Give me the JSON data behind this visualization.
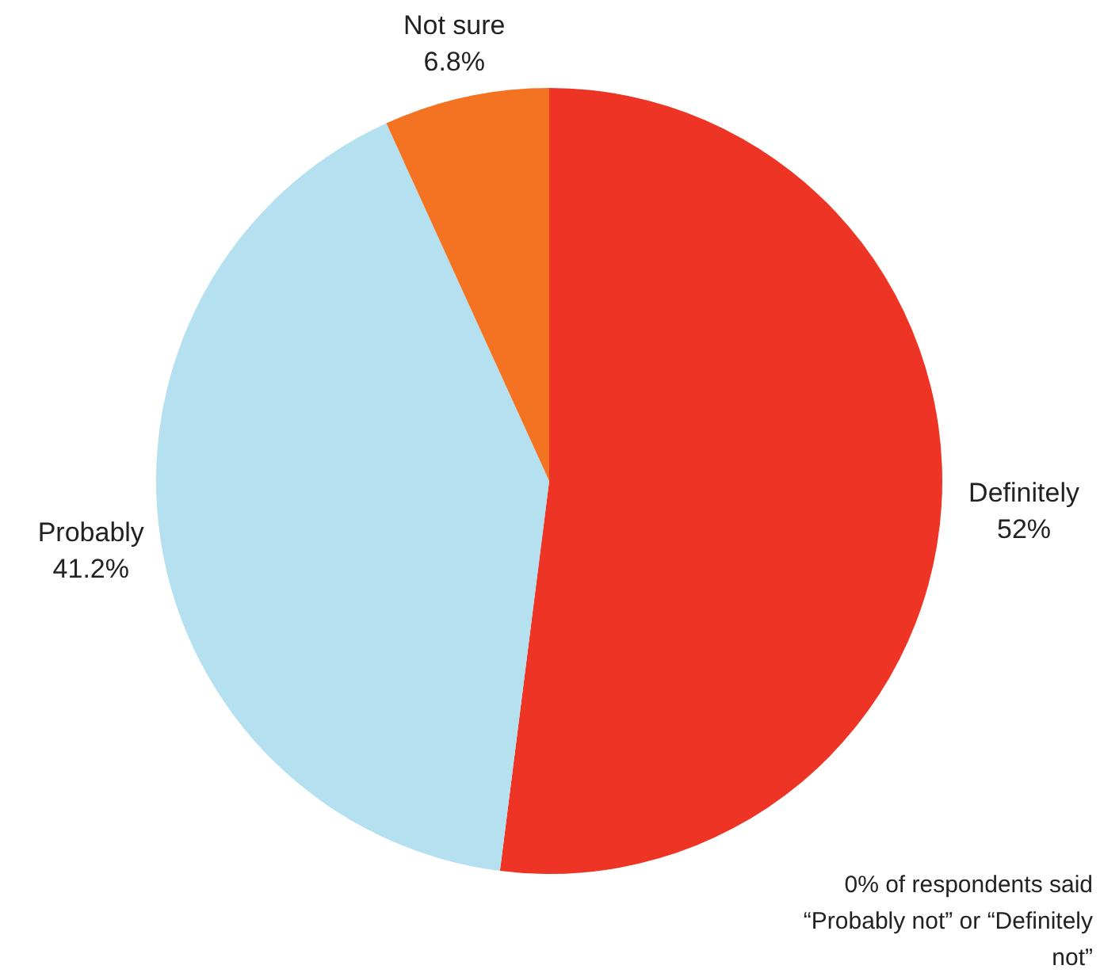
{
  "chart_data": {
    "type": "pie",
    "categories": [
      "Definitely",
      "Probably",
      "Not sure"
    ],
    "values": [
      52,
      41.2,
      6.8
    ],
    "colors": [
      "#ee3425",
      "#b4e0f0",
      "#f47322"
    ],
    "value_labels": [
      "52%",
      "41.2%",
      "6.8%"
    ],
    "annotations": [
      "0% of respondents said “Probably not” or “Definitely not”"
    ]
  }
}
